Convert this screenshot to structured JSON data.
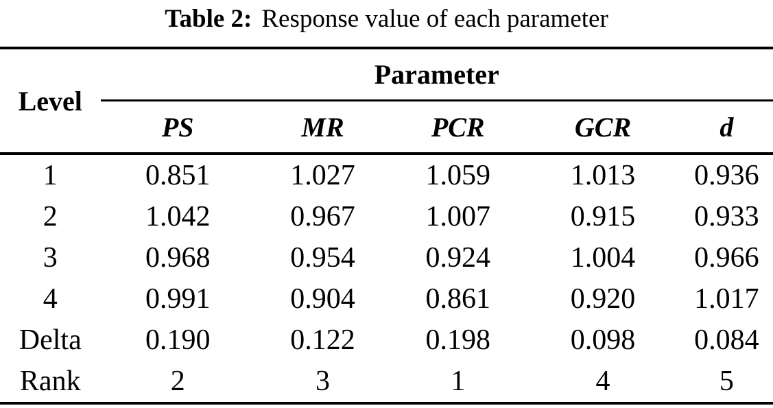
{
  "caption": {
    "label": "Table 2:",
    "text": "Response value of each parameter"
  },
  "table": {
    "level_header": "Level",
    "group_header": "Parameter",
    "param_headers": [
      "PS",
      "MR",
      "PCR",
      "GCR",
      "d"
    ],
    "rows": [
      {
        "level": "1",
        "values": [
          "0.851",
          "1.027",
          "1.059",
          "1.013",
          "0.936"
        ]
      },
      {
        "level": "2",
        "values": [
          "1.042",
          "0.967",
          "1.007",
          "0.915",
          "0.933"
        ]
      },
      {
        "level": "3",
        "values": [
          "0.968",
          "0.954",
          "0.924",
          "1.004",
          "0.966"
        ]
      },
      {
        "level": "4",
        "values": [
          "0.991",
          "0.904",
          "0.861",
          "0.920",
          "1.017"
        ]
      },
      {
        "level": "Delta",
        "values": [
          "0.190",
          "0.122",
          "0.198",
          "0.098",
          "0.084"
        ]
      },
      {
        "level": "Rank",
        "values": [
          "2",
          "3",
          "1",
          "4",
          "5"
        ]
      }
    ]
  },
  "colors": {
    "text": "#000000",
    "background": "#ffffff",
    "rule": "#000000"
  }
}
